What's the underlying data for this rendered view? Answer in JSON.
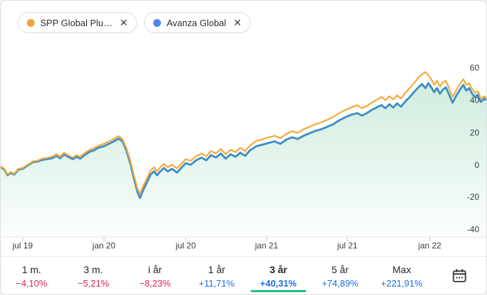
{
  "chips": [
    {
      "label": "SPP Global Plu…",
      "dot_color": "#F2A43C",
      "remove_glyph": "✕"
    },
    {
      "label": "Avanza Global",
      "dot_color": "#4F86EC",
      "remove_glyph": "✕"
    }
  ],
  "chart_data": {
    "type": "line",
    "title": "",
    "unit": "%",
    "grid": false,
    "legend_position": "top-left-chips",
    "y_axis": {
      "ticks": [
        60,
        40,
        20,
        0,
        -20,
        -40
      ],
      "min": -45,
      "max": 65,
      "side": "right"
    },
    "x_axis": {
      "ticks": [
        {
          "t": 0.045,
          "label": "jul 19"
        },
        {
          "t": 0.212,
          "label": "jan 20"
        },
        {
          "t": 0.38,
          "label": "jul 20"
        },
        {
          "t": 0.546,
          "label": "jan 21"
        },
        {
          "t": 0.712,
          "label": "jul 21"
        },
        {
          "t": 0.881,
          "label": "jan 22"
        }
      ]
    },
    "series": [
      {
        "name": "SPP Global Plu…",
        "color": "#F6A83A",
        "area": false,
        "points": [
          [
            0.0,
            -1
          ],
          [
            0.008,
            -2.5
          ],
          [
            0.014,
            -6
          ],
          [
            0.02,
            -4.5
          ],
          [
            0.028,
            -5.5
          ],
          [
            0.036,
            -2.5
          ],
          [
            0.045,
            -2
          ],
          [
            0.055,
            0
          ],
          [
            0.065,
            2
          ],
          [
            0.075,
            2.5
          ],
          [
            0.085,
            3.8
          ],
          [
            0.095,
            4.3
          ],
          [
            0.105,
            5
          ],
          [
            0.115,
            6.5
          ],
          [
            0.122,
            5
          ],
          [
            0.13,
            7.5
          ],
          [
            0.138,
            6
          ],
          [
            0.148,
            4.5
          ],
          [
            0.156,
            6
          ],
          [
            0.163,
            5
          ],
          [
            0.172,
            7.2
          ],
          [
            0.182,
            9.2
          ],
          [
            0.192,
            10.3
          ],
          [
            0.2,
            11.8
          ],
          [
            0.212,
            13
          ],
          [
            0.222,
            14.5
          ],
          [
            0.232,
            16
          ],
          [
            0.242,
            17.8
          ],
          [
            0.25,
            16
          ],
          [
            0.258,
            10.5
          ],
          [
            0.266,
            3
          ],
          [
            0.274,
            -7
          ],
          [
            0.281,
            -15
          ],
          [
            0.286,
            -18
          ],
          [
            0.292,
            -13.5
          ],
          [
            0.3,
            -8.5
          ],
          [
            0.308,
            -3.5
          ],
          [
            0.315,
            -1.5
          ],
          [
            0.321,
            -4
          ],
          [
            0.328,
            -1.5
          ],
          [
            0.335,
            0.5
          ],
          [
            0.343,
            -1.5
          ],
          [
            0.352,
            0
          ],
          [
            0.362,
            -2.2
          ],
          [
            0.372,
            1
          ],
          [
            0.38,
            3.5
          ],
          [
            0.39,
            2.5
          ],
          [
            0.4,
            5
          ],
          [
            0.412,
            7
          ],
          [
            0.422,
            5.3
          ],
          [
            0.432,
            8.5
          ],
          [
            0.442,
            7
          ],
          [
            0.452,
            9.8
          ],
          [
            0.462,
            6.5
          ],
          [
            0.472,
            9.3
          ],
          [
            0.482,
            7.8
          ],
          [
            0.492,
            10.5
          ],
          [
            0.502,
            8.5
          ],
          [
            0.512,
            12
          ],
          [
            0.525,
            14.8
          ],
          [
            0.538,
            15.8
          ],
          [
            0.55,
            17
          ],
          [
            0.562,
            18
          ],
          [
            0.574,
            16.5
          ],
          [
            0.586,
            19
          ],
          [
            0.598,
            20.8
          ],
          [
            0.61,
            19.8
          ],
          [
            0.622,
            22
          ],
          [
            0.634,
            23.5
          ],
          [
            0.646,
            25
          ],
          [
            0.658,
            26.3
          ],
          [
            0.67,
            27.8
          ],
          [
            0.682,
            29.5
          ],
          [
            0.695,
            32
          ],
          [
            0.708,
            34
          ],
          [
            0.72,
            35.5
          ],
          [
            0.732,
            37
          ],
          [
            0.742,
            35
          ],
          [
            0.752,
            36.5
          ],
          [
            0.762,
            38.5
          ],
          [
            0.772,
            40.3
          ],
          [
            0.782,
            42
          ],
          [
            0.79,
            40
          ],
          [
            0.798,
            42.5
          ],
          [
            0.806,
            40.5
          ],
          [
            0.814,
            43
          ],
          [
            0.822,
            41
          ],
          [
            0.83,
            44.3
          ],
          [
            0.84,
            47.5
          ],
          [
            0.85,
            51
          ],
          [
            0.858,
            54
          ],
          [
            0.865,
            56
          ],
          [
            0.872,
            57.5
          ],
          [
            0.878,
            55.5
          ],
          [
            0.884,
            53
          ],
          [
            0.89,
            49.5
          ],
          [
            0.896,
            52
          ],
          [
            0.902,
            48.5
          ],
          [
            0.908,
            51
          ],
          [
            0.914,
            52
          ],
          [
            0.92,
            48
          ],
          [
            0.928,
            42
          ],
          [
            0.936,
            46.5
          ],
          [
            0.944,
            50.5
          ],
          [
            0.95,
            53
          ],
          [
            0.956,
            49.5
          ],
          [
            0.962,
            50.5
          ],
          [
            0.968,
            47
          ],
          [
            0.974,
            44.5
          ],
          [
            0.98,
            45.5
          ],
          [
            0.986,
            41
          ],
          [
            0.993,
            42.5
          ],
          [
            1.0,
            41
          ]
        ]
      },
      {
        "name": "Avanza Global",
        "color": "#4584E6",
        "area": true,
        "area_edge_color": "#2BAB6C",
        "area_fill_top": "rgba(46,175,110,0.22)",
        "area_fill_bottom": "rgba(46,175,110,0.02)",
        "points": [
          [
            0.0,
            -1.5
          ],
          [
            0.008,
            -3
          ],
          [
            0.014,
            -6.5
          ],
          [
            0.02,
            -5
          ],
          [
            0.028,
            -6
          ],
          [
            0.036,
            -3
          ],
          [
            0.045,
            -2.5
          ],
          [
            0.055,
            -0.5
          ],
          [
            0.065,
            1.5
          ],
          [
            0.075,
            2
          ],
          [
            0.085,
            3
          ],
          [
            0.095,
            3.5
          ],
          [
            0.105,
            4
          ],
          [
            0.115,
            5.5
          ],
          [
            0.122,
            4
          ],
          [
            0.13,
            6.5
          ],
          [
            0.138,
            5
          ],
          [
            0.148,
            3.5
          ],
          [
            0.156,
            5
          ],
          [
            0.163,
            3.8
          ],
          [
            0.172,
            6
          ],
          [
            0.182,
            8
          ],
          [
            0.192,
            9
          ],
          [
            0.2,
            10.5
          ],
          [
            0.212,
            11.5
          ],
          [
            0.222,
            13
          ],
          [
            0.232,
            14.5
          ],
          [
            0.242,
            16.2
          ],
          [
            0.25,
            14.5
          ],
          [
            0.258,
            9
          ],
          [
            0.266,
            1
          ],
          [
            0.274,
            -9
          ],
          [
            0.281,
            -17
          ],
          [
            0.286,
            -20.5
          ],
          [
            0.292,
            -16
          ],
          [
            0.3,
            -11
          ],
          [
            0.308,
            -6
          ],
          [
            0.315,
            -4
          ],
          [
            0.321,
            -6.5
          ],
          [
            0.328,
            -4
          ],
          [
            0.335,
            -2
          ],
          [
            0.343,
            -4
          ],
          [
            0.352,
            -2.5
          ],
          [
            0.362,
            -4.8
          ],
          [
            0.372,
            -1.5
          ],
          [
            0.38,
            1
          ],
          [
            0.39,
            0
          ],
          [
            0.4,
            2.5
          ],
          [
            0.412,
            4.5
          ],
          [
            0.422,
            2.8
          ],
          [
            0.432,
            6
          ],
          [
            0.442,
            4.5
          ],
          [
            0.452,
            7
          ],
          [
            0.462,
            3.8
          ],
          [
            0.472,
            6.5
          ],
          [
            0.482,
            5
          ],
          [
            0.492,
            7.5
          ],
          [
            0.502,
            5.5
          ],
          [
            0.512,
            9
          ],
          [
            0.525,
            11.5
          ],
          [
            0.538,
            12.5
          ],
          [
            0.55,
            13.5
          ],
          [
            0.562,
            14.5
          ],
          [
            0.574,
            13
          ],
          [
            0.586,
            15.5
          ],
          [
            0.598,
            17
          ],
          [
            0.61,
            16
          ],
          [
            0.622,
            18
          ],
          [
            0.634,
            19.5
          ],
          [
            0.646,
            21
          ],
          [
            0.658,
            22
          ],
          [
            0.67,
            23.5
          ],
          [
            0.682,
            25
          ],
          [
            0.695,
            27.5
          ],
          [
            0.708,
            29.5
          ],
          [
            0.72,
            31
          ],
          [
            0.732,
            32
          ],
          [
            0.742,
            30.5
          ],
          [
            0.752,
            32
          ],
          [
            0.762,
            34
          ],
          [
            0.772,
            35.5
          ],
          [
            0.782,
            37
          ],
          [
            0.79,
            35
          ],
          [
            0.798,
            37.5
          ],
          [
            0.806,
            35.5
          ],
          [
            0.814,
            38
          ],
          [
            0.822,
            36
          ],
          [
            0.83,
            39
          ],
          [
            0.84,
            42
          ],
          [
            0.85,
            45.5
          ],
          [
            0.858,
            48
          ],
          [
            0.865,
            50
          ],
          [
            0.872,
            47.5
          ],
          [
            0.878,
            50.5
          ],
          [
            0.884,
            48
          ],
          [
            0.89,
            45
          ],
          [
            0.896,
            47.5
          ],
          [
            0.902,
            44
          ],
          [
            0.908,
            46.5
          ],
          [
            0.914,
            48
          ],
          [
            0.92,
            44
          ],
          [
            0.928,
            38.5
          ],
          [
            0.936,
            43
          ],
          [
            0.944,
            47
          ],
          [
            0.95,
            49.5
          ],
          [
            0.956,
            46
          ],
          [
            0.962,
            47.5
          ],
          [
            0.968,
            44
          ],
          [
            0.974,
            42
          ],
          [
            0.98,
            43.5
          ],
          [
            0.986,
            39
          ],
          [
            0.993,
            41
          ],
          [
            1.0,
            39.5
          ]
        ]
      }
    ]
  },
  "periods": [
    {
      "label": "1 m.",
      "value": "−4,10%",
      "direction": "down",
      "selected": false
    },
    {
      "label": "3 m.",
      "value": "−5,21%",
      "direction": "down",
      "selected": false
    },
    {
      "label": "i år",
      "value": "−8,23%",
      "direction": "down",
      "selected": false
    },
    {
      "label": "1 år",
      "value": "+11,71%",
      "direction": "up",
      "selected": false
    },
    {
      "label": "3 år",
      "value": "+40,31%",
      "direction": "up",
      "selected": true
    },
    {
      "label": "5 år",
      "value": "+74,89%",
      "direction": "up",
      "selected": false
    },
    {
      "label": "Max",
      "value": "+221,91%",
      "direction": "up",
      "selected": false
    }
  ],
  "colors": {
    "up": "#1B6EDC",
    "down": "#D6244A",
    "accent_green": "#22C07E",
    "axis_line": "#E2E2E2",
    "tick": "#C9C9C9",
    "divider": "#ECECEC"
  }
}
